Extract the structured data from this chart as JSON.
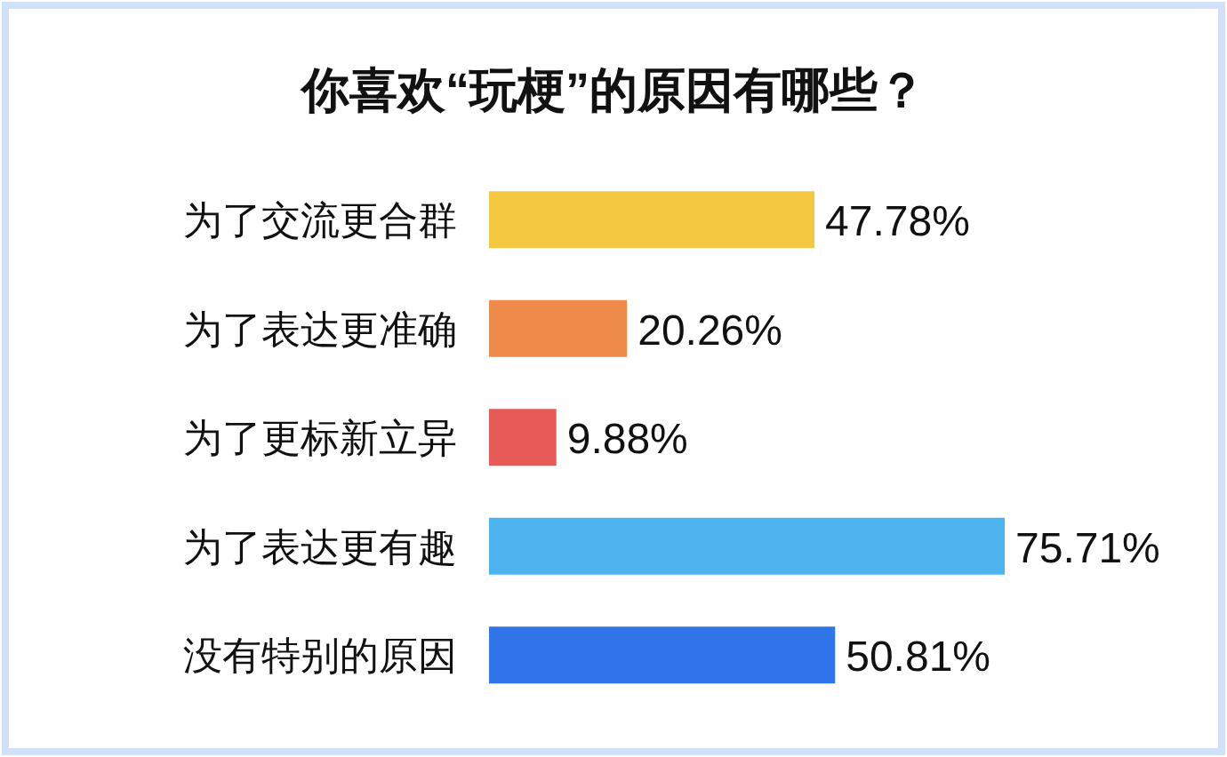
{
  "chart_data": {
    "type": "bar",
    "orientation": "horizontal",
    "title": "你喜欢“玩梗”的原因有哪些？",
    "categories": [
      "为了交流更合群",
      "为了表达更准确",
      "为了更标新立异",
      "为了表达更有趣",
      "没有特别的原因"
    ],
    "values": [
      47.78,
      20.26,
      9.88,
      75.71,
      50.81
    ],
    "colors": [
      "#f5c842",
      "#ee8a4a",
      "#e85a55",
      "#4db3ee",
      "#2f74e8"
    ],
    "value_labels": [
      "47.78%",
      "20.26%",
      "9.88%",
      "75.71%",
      "50.81%"
    ]
  }
}
